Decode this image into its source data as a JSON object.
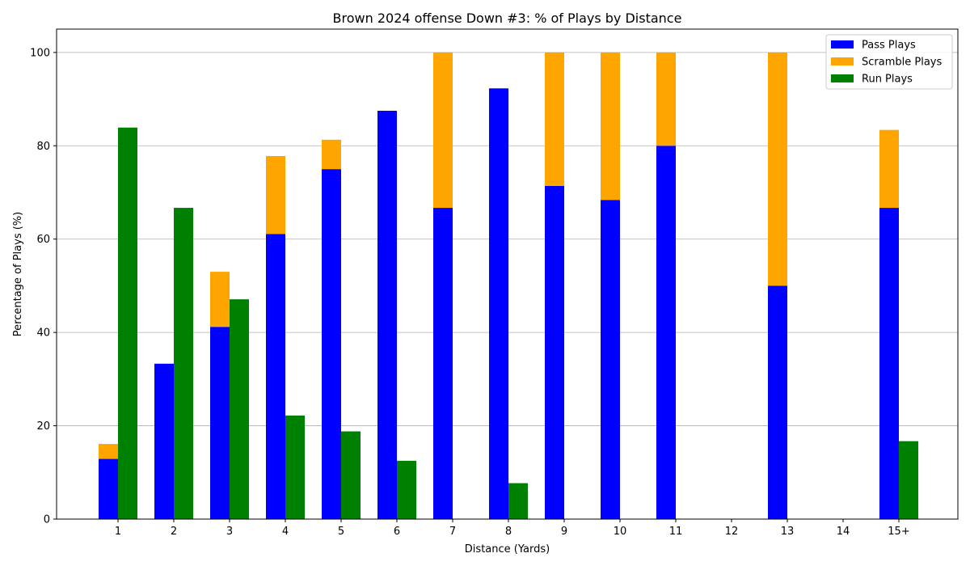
{
  "chart_data": {
    "type": "bar",
    "title": "Brown 2024 offense Down #3: % of Plays by Distance",
    "xlabel": "Distance (Yards)",
    "ylabel": "Percentage of Plays (%)",
    "ylim": [
      0,
      105
    ],
    "yticks": [
      0,
      20,
      40,
      60,
      80,
      100
    ],
    "grid": "horizontal",
    "legend_position": "top-right",
    "categories": [
      "1",
      "2",
      "3",
      "4",
      "5",
      "6",
      "7",
      "8",
      "9",
      "10",
      "11",
      "12",
      "13",
      "14",
      "15+"
    ],
    "series": [
      {
        "name": "Pass Plays",
        "color": "#0000ff",
        "stack": "pass",
        "values": [
          12.9,
          33.3,
          41.2,
          61.1,
          75.0,
          87.5,
          66.7,
          92.3,
          71.4,
          68.4,
          80.0,
          0,
          50.0,
          0,
          66.7
        ]
      },
      {
        "name": "Scramble Plays",
        "color": "#ffa500",
        "stack": "pass",
        "values": [
          3.2,
          0,
          11.8,
          16.7,
          6.3,
          0,
          33.3,
          0,
          28.6,
          31.6,
          20.0,
          0,
          50.0,
          0,
          16.7
        ]
      },
      {
        "name": "Run Plays",
        "color": "#008000",
        "stack": "run",
        "values": [
          83.9,
          66.7,
          47.1,
          22.2,
          18.8,
          12.5,
          0,
          7.7,
          0,
          0,
          0,
          0,
          0,
          0,
          16.7
        ]
      }
    ]
  }
}
